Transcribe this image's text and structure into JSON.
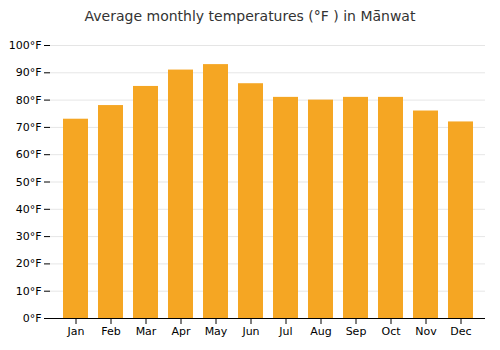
{
  "chart_data": {
    "type": "bar",
    "title": "Average monthly temperatures (°F ) in Mā̈nwat",
    "categories": [
      "Jan",
      "Feb",
      "Mar",
      "Apr",
      "May",
      "Jun",
      "Jul",
      "Aug",
      "Sep",
      "Oct",
      "Nov",
      "Dec"
    ],
    "values": [
      73,
      78,
      85,
      91,
      93,
      86,
      81,
      80,
      81,
      81,
      76,
      72
    ],
    "color": "#F5A623",
    "ylim": [
      0,
      100
    ],
    "yticks": [
      {
        "value": 0,
        "label": "0°F"
      },
      {
        "value": 10,
        "label": "10°F"
      },
      {
        "value": 20,
        "label": "20°F"
      },
      {
        "value": 30,
        "label": "30°F"
      },
      {
        "value": 40,
        "label": "40°F"
      },
      {
        "value": 50,
        "label": "50°F"
      },
      {
        "value": 60,
        "label": "60°F"
      },
      {
        "value": 70,
        "label": "70°F"
      },
      {
        "value": 80,
        "label": "80°F"
      },
      {
        "value": 90,
        "label": "90°F"
      },
      {
        "value": 100,
        "label": "100°F"
      }
    ],
    "grid": true
  }
}
